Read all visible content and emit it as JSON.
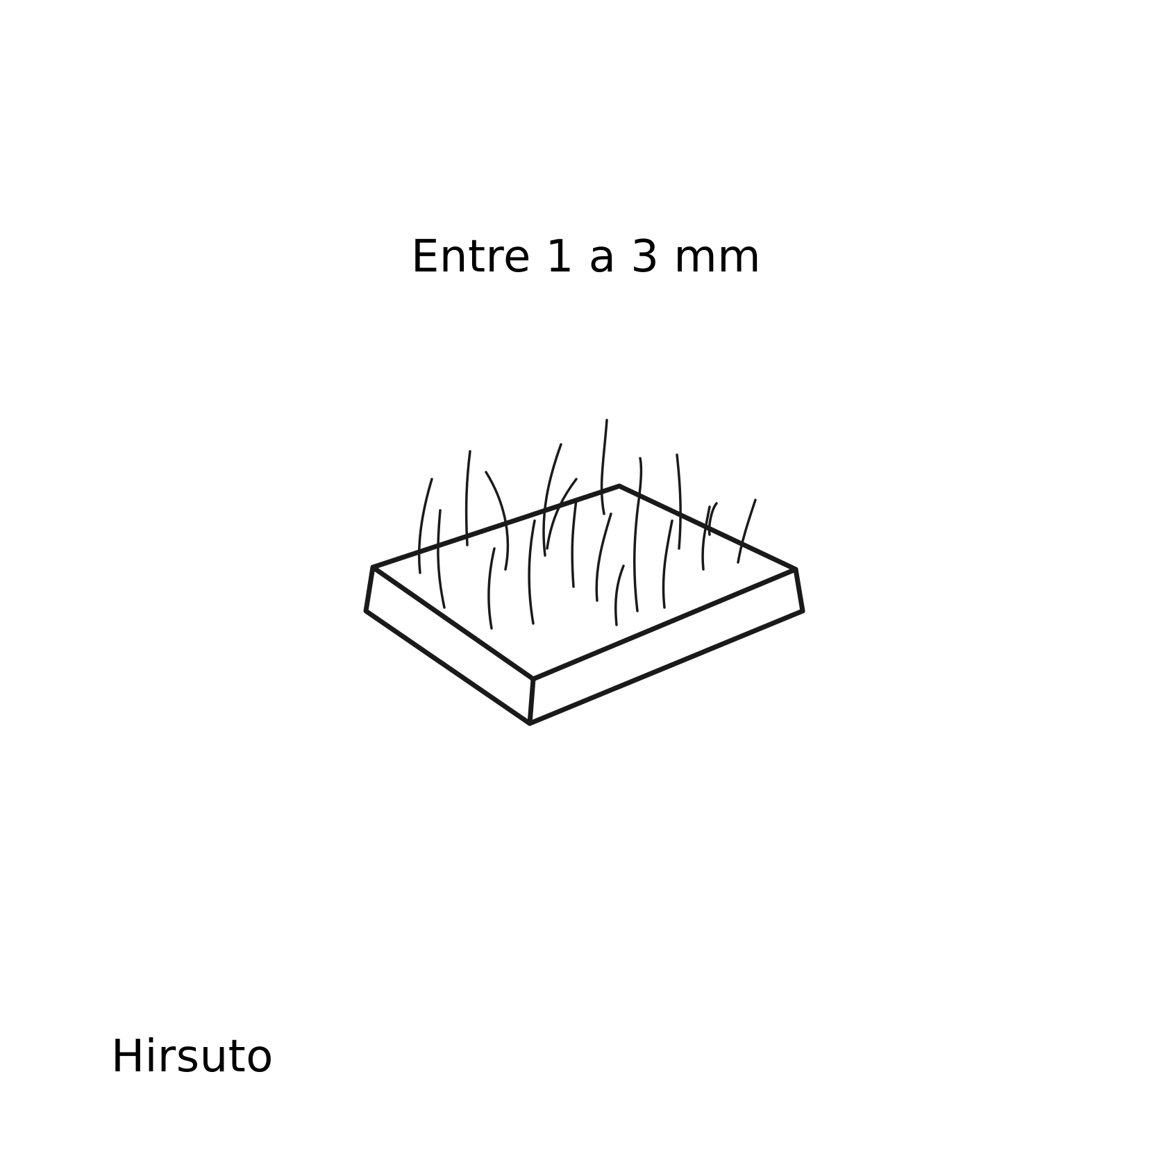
{
  "caption": "Entre 1 a 3 mm",
  "term": "Hirsuto",
  "illustration": {
    "icon": "hairy-surface-slab-icon",
    "stroke_color": "#1a1a1a"
  }
}
